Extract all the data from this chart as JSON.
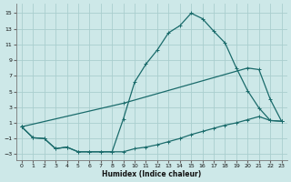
{
  "bg_color": "#cde8e8",
  "grid_color": "#aacece",
  "line_color": "#1a6b6b",
  "xlabel": "Humidex (Indice chaleur)",
  "xlim": [
    -0.5,
    23.5
  ],
  "ylim": [
    -3.8,
    16.2
  ],
  "yticks": [
    -3,
    -1,
    1,
    3,
    5,
    7,
    9,
    11,
    13,
    15
  ],
  "xticks": [
    0,
    1,
    2,
    3,
    4,
    5,
    6,
    7,
    8,
    9,
    10,
    11,
    12,
    13,
    14,
    15,
    16,
    17,
    18,
    19,
    20,
    21,
    22,
    23
  ],
  "line1_x": [
    0,
    1,
    2,
    3,
    4,
    5,
    6,
    7,
    8,
    9,
    10,
    11,
    12,
    13,
    14,
    15,
    16,
    17,
    18,
    19,
    20,
    21,
    22,
    23
  ],
  "line1_y": [
    0.5,
    -0.9,
    -1.0,
    -2.3,
    -2.1,
    -2.7,
    -2.7,
    -2.7,
    -2.7,
    1.5,
    6.2,
    8.5,
    10.3,
    12.5,
    13.4,
    15.0,
    14.3,
    12.7,
    11.2,
    8.0,
    5.1,
    2.9,
    1.3,
    1.2
  ],
  "line2_x": [
    0,
    1,
    2,
    3,
    4,
    5,
    6,
    7,
    8,
    9,
    10,
    11,
    12,
    13,
    14,
    15,
    16,
    17,
    18,
    19,
    20,
    21,
    22,
    23
  ],
  "line2_y": [
    0.5,
    -0.9,
    -1.0,
    -2.3,
    -2.1,
    -2.7,
    -2.7,
    -2.7,
    -2.7,
    -2.7,
    -2.3,
    -2.1,
    -1.8,
    -1.4,
    -1.0,
    -0.5,
    -0.1,
    0.3,
    0.7,
    1.0,
    1.4,
    1.8,
    1.3,
    1.2
  ],
  "line3_x": [
    0,
    9,
    20,
    21,
    22,
    23
  ],
  "line3_y": [
    0.5,
    3.5,
    8.0,
    7.8,
    4.0,
    1.2
  ],
  "marker_size": 2.5,
  "line_width": 0.9,
  "xlabel_fontsize": 5.5,
  "tick_fontsize": 4.5
}
